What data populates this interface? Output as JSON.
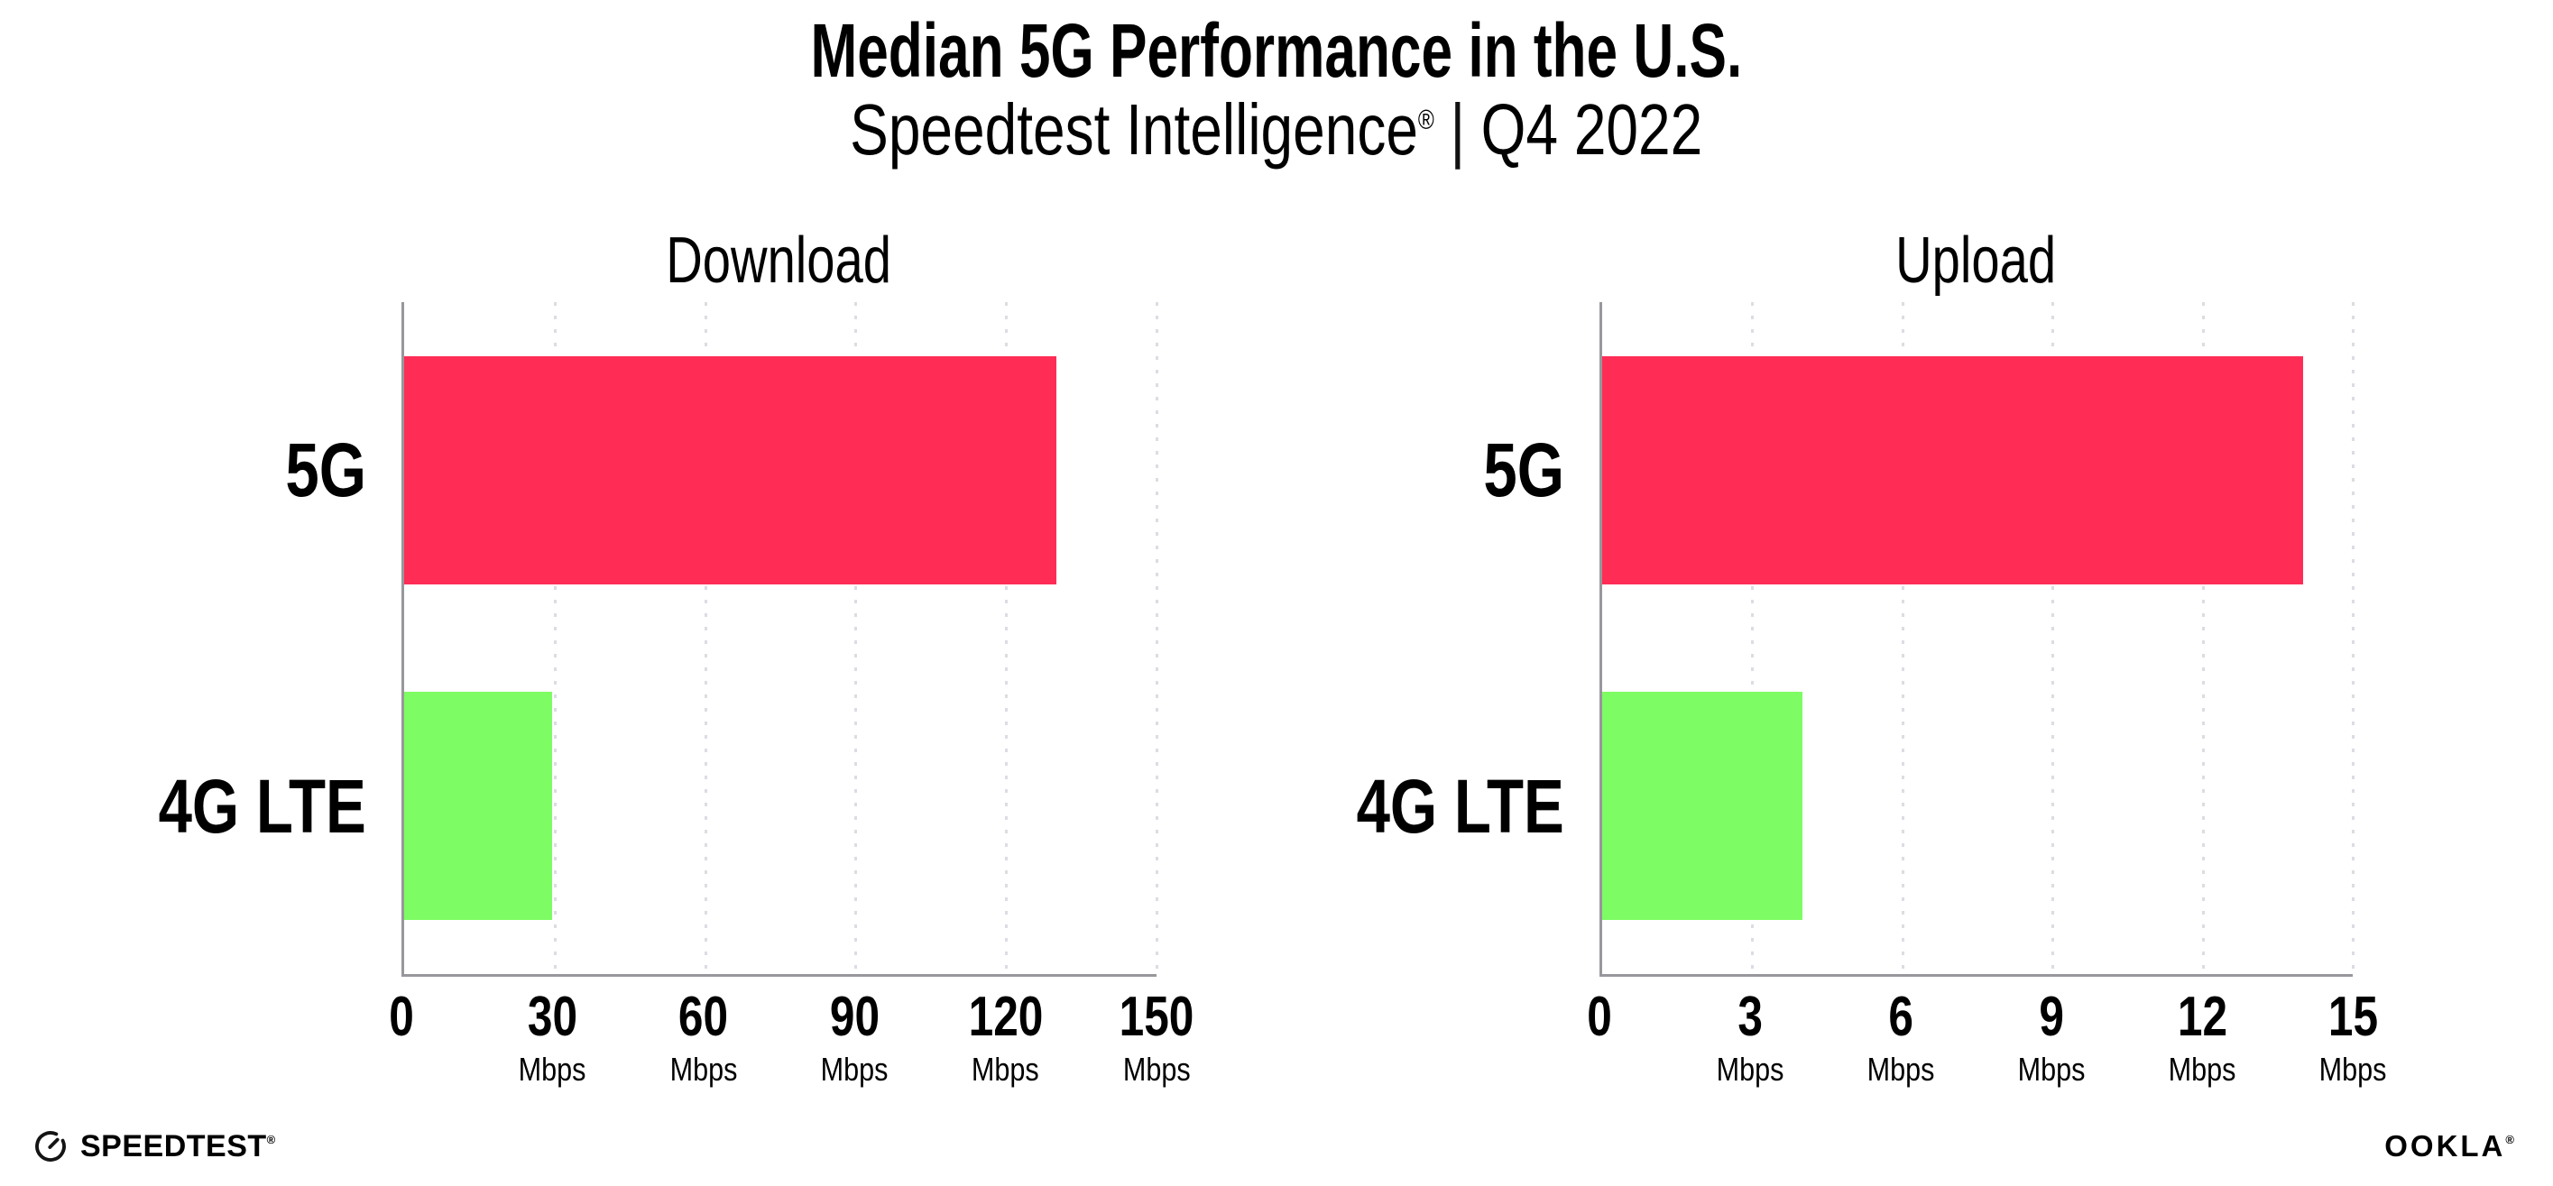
{
  "header": {
    "title": "Median 5G Performance in the U.S.",
    "subtitle_brand": "Speedtest Intelligence",
    "subtitle_reg": "®",
    "subtitle_sep": "|",
    "subtitle_period": "Q4 2022"
  },
  "colors": {
    "bar_5g": "#FF2D55",
    "bar_4g_lte": "#7EFC63",
    "axis": "#97979c",
    "gridline": "#dcdce3",
    "background": "#ffffff",
    "text": "#000000"
  },
  "chart_data": [
    {
      "type": "bar",
      "orientation": "horizontal",
      "title": "Download",
      "categories": [
        "5G",
        "4G LTE"
      ],
      "values": [
        130,
        29.5
      ],
      "unit": "Mbps",
      "xlim": [
        0,
        150
      ],
      "xticks": [
        0,
        30,
        60,
        90,
        120,
        150
      ],
      "tick_unit_label": "Mbps",
      "grid": "dotted-vertical",
      "legend": "none",
      "bar_colors": [
        "#FF2D55",
        "#7EFC63"
      ]
    },
    {
      "type": "bar",
      "orientation": "horizontal",
      "title": "Upload",
      "categories": [
        "5G",
        "4G LTE"
      ],
      "values": [
        14,
        4
      ],
      "unit": "Mbps",
      "xlim": [
        0,
        15
      ],
      "xticks": [
        0,
        3,
        6,
        9,
        12,
        15
      ],
      "tick_unit_label": "Mbps",
      "grid": "dotted-vertical",
      "legend": "none",
      "bar_colors": [
        "#FF2D55",
        "#7EFC63"
      ]
    }
  ],
  "footer": {
    "speedtest_label": "SPEEDTEST",
    "speedtest_reg": "®",
    "speedtest_icon": "speedometer-gauge-icon",
    "ookla_label": "OOKLA",
    "ookla_reg": "®"
  }
}
